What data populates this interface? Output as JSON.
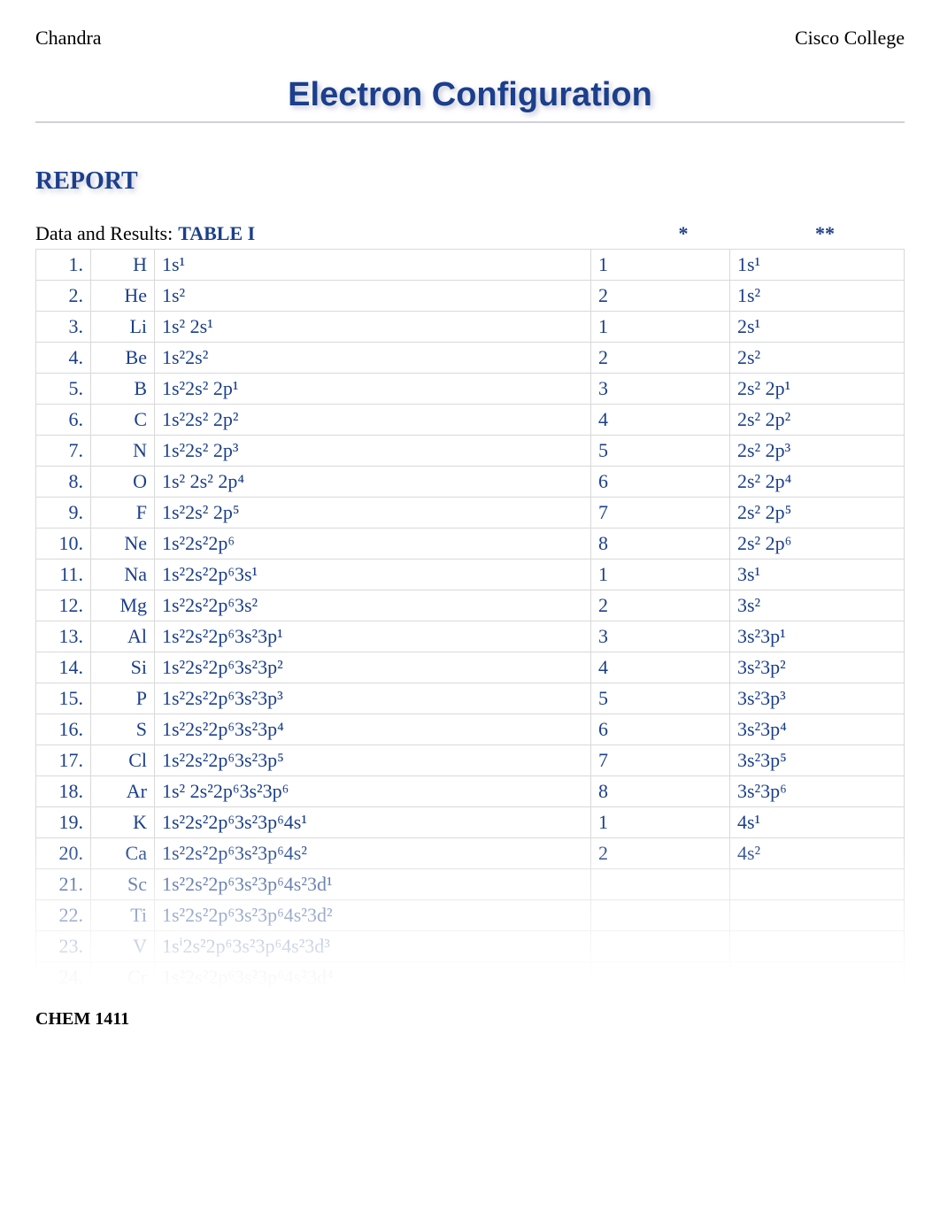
{
  "header": {
    "left": "Chandra",
    "right": "Cisco College"
  },
  "title": "Electron Configuration",
  "section": "REPORT",
  "table_caption_lead": "Data and Results:",
  "table_caption_name": "TABLE I",
  "col_star": "*",
  "col_starstar": "**",
  "footer": "CHEM 1411",
  "colors": {
    "heading": "#1b3f8b",
    "text": "#000000",
    "cell_border": "#d9d9d9",
    "background": "#ffffff"
  },
  "typography": {
    "body_font": "Times New Roman",
    "title_font": "Arial",
    "title_size_pt": 28,
    "section_size_pt": 21,
    "body_size_pt": 16
  },
  "rows": [
    {
      "n": "1.",
      "sym": "H",
      "conf": "1s¹",
      "star": "1",
      "short": "1s¹"
    },
    {
      "n": "2.",
      "sym": "He",
      "conf": "1s²",
      "star": "2",
      "short": "1s²"
    },
    {
      "n": "3.",
      "sym": "Li",
      "conf": "1s² 2s¹",
      "star": "1",
      "short": "2s¹"
    },
    {
      "n": "4.",
      "sym": "Be",
      "conf": "1s²2s²",
      "star": "2",
      "short": "2s²"
    },
    {
      "n": "5.",
      "sym": "B",
      "conf": "1s²2s² 2p¹",
      "star": "3",
      "short": "2s² 2p¹"
    },
    {
      "n": "6.",
      "sym": "C",
      "conf": "1s²2s² 2p²",
      "star": "4",
      "short": "2s² 2p²"
    },
    {
      "n": "7.",
      "sym": "N",
      "conf": "1s²2s² 2p³",
      "star": "5",
      "short": "2s² 2p³"
    },
    {
      "n": "8.",
      "sym": "O",
      "conf": "1s² 2s² 2p⁴",
      "star": "6",
      "short": "2s² 2p⁴"
    },
    {
      "n": "9.",
      "sym": "F",
      "conf": "1s²2s² 2p⁵",
      "star": "7",
      "short": "2s² 2p⁵"
    },
    {
      "n": "10.",
      "sym": "Ne",
      "conf": "1s²2s²2p⁶",
      "star": "8",
      "short": "2s² 2p⁶"
    },
    {
      "n": "11.",
      "sym": "Na",
      "conf": "1s²2s²2p⁶3s¹",
      "star": "1",
      "short": "3s¹"
    },
    {
      "n": "12.",
      "sym": "Mg",
      "conf": "1s²2s²2p⁶3s²",
      "star": "2",
      "short": "3s²"
    },
    {
      "n": "13.",
      "sym": "Al",
      "conf": "1s²2s²2p⁶3s²3p¹",
      "star": "3",
      "short": "3s²3p¹"
    },
    {
      "n": "14.",
      "sym": "Si",
      "conf": "1s²2s²2p⁶3s²3p²",
      "star": "4",
      "short": "3s²3p²"
    },
    {
      "n": "15.",
      "sym": "P",
      "conf": "1s²2s²2p⁶3s²3p³",
      "star": "5",
      "short": "3s²3p³"
    },
    {
      "n": "16.",
      "sym": "S",
      "conf": "1s²2s²2p⁶3s²3p⁴",
      "star": "6",
      "short": "3s²3p⁴"
    },
    {
      "n": "17.",
      "sym": "Cl",
      "conf": "1s²2s²2p⁶3s²3p⁵",
      "star": "7",
      "short": "3s²3p⁵"
    },
    {
      "n": "18.",
      "sym": "Ar",
      "conf": "1s² 2s²2p⁶3s²3p⁶",
      "star": "8",
      "short": "3s²3p⁶"
    },
    {
      "n": "19.",
      "sym": "K",
      "conf": "1s²2s²2p⁶3s²3p⁶4s¹",
      "star": "1",
      "short": "4s¹"
    },
    {
      "n": "20.",
      "sym": "Ca",
      "conf": "1s²2s²2p⁶3s²3p⁶4s²",
      "star": "2",
      "short": "4s²"
    },
    {
      "n": "21.",
      "sym": "Sc",
      "conf": "1s²2s²2p⁶3s²3p⁶4s²3d¹",
      "star": "",
      "short": ""
    },
    {
      "n": "22.",
      "sym": "Ti",
      "conf": "1s²2s²2p⁶3s²3p⁶4s²3d²",
      "star": "",
      "short": ""
    },
    {
      "n": "23.",
      "sym": "V",
      "conf": "1sⁱ2s²2p⁶3s²3p⁶4s²3d³",
      "star": "",
      "short": ""
    },
    {
      "n": "24.",
      "sym": "Cr",
      "conf": "1s²2s²2p⁶3s²3p⁶4s²3d⁴",
      "star": "",
      "short": ""
    }
  ]
}
